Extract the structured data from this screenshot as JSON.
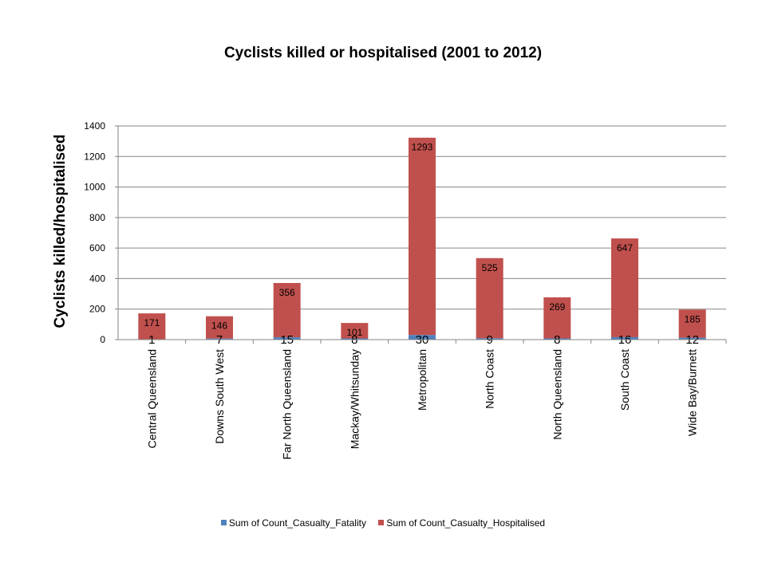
{
  "chart_data": {
    "type": "bar",
    "stacked": true,
    "title": "Cyclists killed or hospitalised (2001 to 2012)",
    "xlabel": "",
    "ylabel": "Cyclists killed/hospitalised",
    "ylim": [
      0,
      1400
    ],
    "yticks": [
      "0",
      "200",
      "400",
      "600",
      "800",
      "1000",
      "1200",
      "1400"
    ],
    "grid": true,
    "legend_position": "bottom",
    "categories": [
      "Central Queensland",
      "Downs South West",
      "Far North Queensland",
      "Mackay/Whitsunday",
      "Metropolitan",
      "North Coast",
      "North Queensland",
      "South Coast",
      "Wide Bay/Burnett"
    ],
    "series": [
      {
        "name": "Sum of Count_Casualty_Fatality",
        "color": "#4F81BD",
        "values": [
          1,
          7,
          15,
          8,
          30,
          9,
          8,
          16,
          12
        ],
        "labels": [
          "1",
          "7",
          "15",
          "8",
          "30",
          "9",
          "8",
          "16",
          "12"
        ]
      },
      {
        "name": "Sum of Count_Casualty_Hospitalised",
        "color": "#C0504D",
        "values": [
          171,
          146,
          356,
          101,
          1293,
          525,
          269,
          647,
          185
        ],
        "labels": [
          "171",
          "146",
          "356",
          "101",
          "1293",
          "525",
          "269",
          "647",
          "185"
        ]
      }
    ]
  }
}
